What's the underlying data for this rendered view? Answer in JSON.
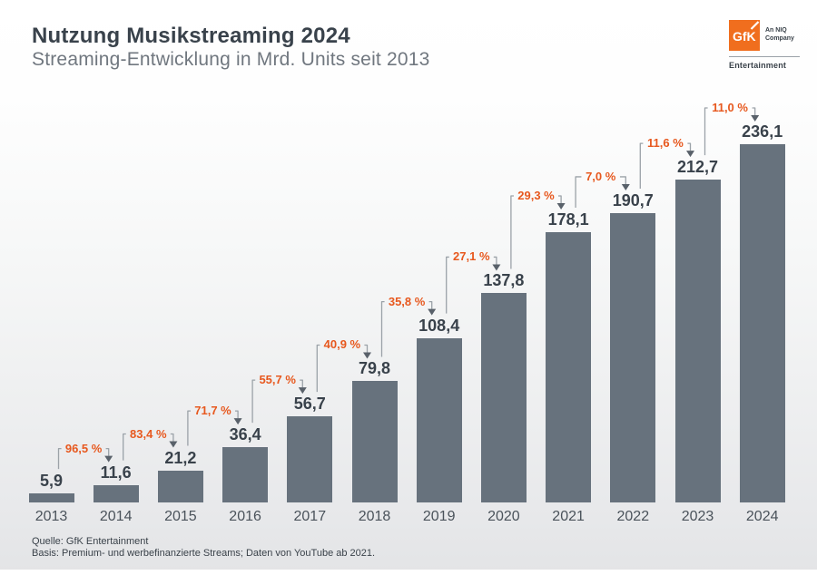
{
  "header": {
    "title": "Nutzung Musikstreaming 2024",
    "subtitle": "Streaming-Entwicklung in Mrd. Units seit 2013"
  },
  "logo": {
    "mark_text": "GfK",
    "niq_line1": "An NIQ",
    "niq_line2": "Company",
    "entertainment": "Entertainment"
  },
  "chart_data": {
    "type": "bar",
    "title": "Nutzung Musikstreaming 2024",
    "subtitle": "Streaming-Entwicklung in Mrd. Units seit 2013",
    "unit": "Mrd. Units",
    "categories": [
      "2013",
      "2014",
      "2015",
      "2016",
      "2017",
      "2018",
      "2019",
      "2020",
      "2021",
      "2022",
      "2023",
      "2024"
    ],
    "values": [
      5.9,
      11.6,
      21.2,
      36.4,
      56.7,
      79.8,
      108.4,
      137.8,
      178.1,
      190.7,
      212.7,
      236.1
    ],
    "value_labels": [
      "5,9",
      "11,6",
      "21,2",
      "36,4",
      "56,7",
      "79,8",
      "108,4",
      "137,8",
      "178,1",
      "190,7",
      "212,7",
      "236,1"
    ],
    "growth_percent_values": [
      96.5,
      83.4,
      71.7,
      55.7,
      40.9,
      35.8,
      27.1,
      29.3,
      7.0,
      11.6,
      11.0
    ],
    "growth_percent_labels": [
      "96,5 %",
      "83,4 %",
      "71,7 %",
      "55,7 %",
      "40,9 %",
      "35,8 %",
      "27,1 %",
      "29,3 %",
      "7,0 %",
      "11,6 %",
      "11,0 %"
    ],
    "ylim": [
      0,
      250
    ],
    "grid": false,
    "legend": false,
    "bar_color": "#67727D",
    "value_label_color": "#39424B",
    "axis_label_color": "#4A525A",
    "percent_color": "#E7581E",
    "connector_line_color": "#9BA2A8",
    "arrowhead_color": "#59616A"
  },
  "footer": {
    "source": "Quelle: GfK Entertainment",
    "basis": "Basis: Premium- und werbefinanzierte Streams; Daten von YouTube ab 2021."
  },
  "colors": {
    "accent_orange": "#F06E1E",
    "title_dark": "#39424B",
    "subtitle_gray": "#70777F"
  }
}
